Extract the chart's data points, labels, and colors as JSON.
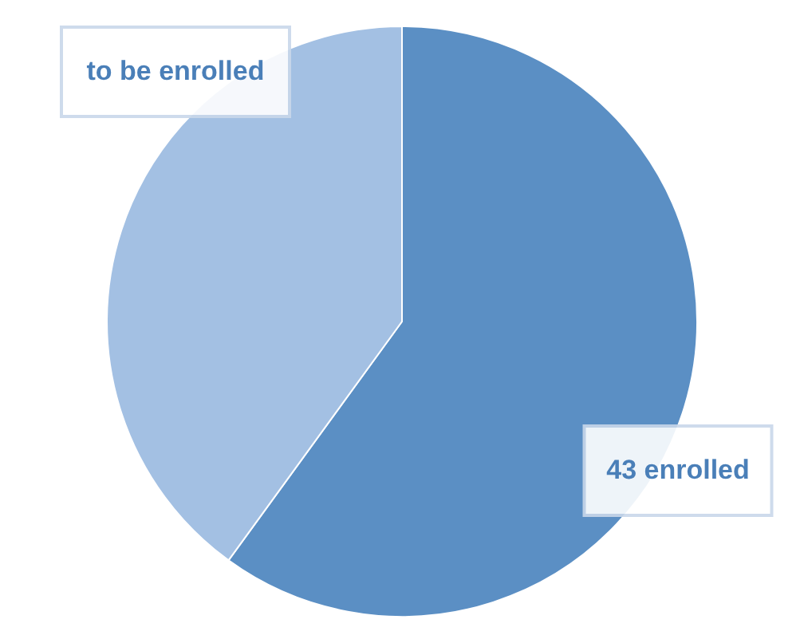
{
  "chart_data": {
    "type": "pie",
    "categories": [
      "43 enrolled",
      "to be enrolled"
    ],
    "values": [
      60,
      40
    ],
    "colors": [
      "#5b8fc4",
      "#a3c0e3"
    ]
  }
}
